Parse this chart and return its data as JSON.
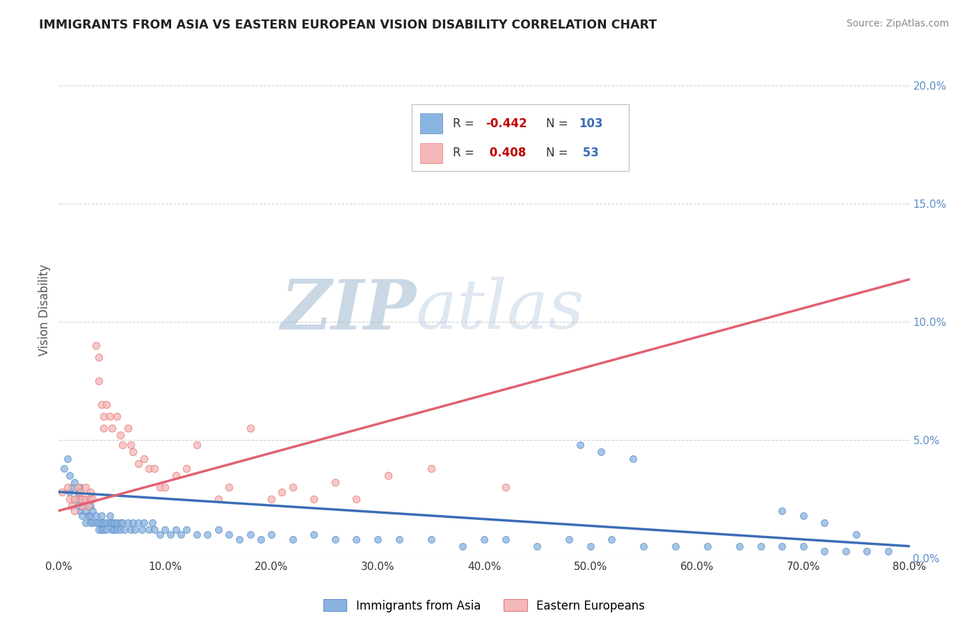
{
  "title": "IMMIGRANTS FROM ASIA VS EASTERN EUROPEAN VISION DISABILITY CORRELATION CHART",
  "source": "Source: ZipAtlas.com",
  "ylabel": "Vision Disability",
  "xlim": [
    0.0,
    0.8
  ],
  "ylim": [
    0.0,
    0.21
  ],
  "xticks": [
    0.0,
    0.1,
    0.2,
    0.3,
    0.4,
    0.5,
    0.6,
    0.7,
    0.8
  ],
  "yticks": [
    0.0,
    0.05,
    0.1,
    0.15,
    0.2
  ],
  "xtick_labels": [
    "0.0%",
    "10.0%",
    "20.0%",
    "30.0%",
    "40.0%",
    "50.0%",
    "60.0%",
    "70.0%",
    "80.0%"
  ],
  "ytick_labels": [
    "0.0%",
    "5.0%",
    "10.0%",
    "15.0%",
    "20.0%"
  ],
  "blue_color": "#8ab4e0",
  "pink_color": "#f4b8b8",
  "blue_edge_color": "#5b8ec9",
  "pink_edge_color": "#e87878",
  "blue_line_color": "#3b6db5",
  "pink_line_color": "#e06070",
  "legend_R_blue": "-0.442",
  "legend_N_blue": "103",
  "legend_R_pink": "0.408",
  "legend_N_pink": "53",
  "legend_label_blue": "Immigrants from Asia",
  "legend_label_pink": "Eastern Europeans",
  "blue_scatter_x": [
    0.005,
    0.008,
    0.01,
    0.01,
    0.012,
    0.015,
    0.015,
    0.018,
    0.018,
    0.02,
    0.02,
    0.02,
    0.022,
    0.022,
    0.025,
    0.025,
    0.025,
    0.028,
    0.028,
    0.03,
    0.03,
    0.03,
    0.032,
    0.032,
    0.035,
    0.035,
    0.038,
    0.038,
    0.04,
    0.04,
    0.04,
    0.042,
    0.042,
    0.045,
    0.045,
    0.048,
    0.048,
    0.05,
    0.05,
    0.052,
    0.052,
    0.055,
    0.055,
    0.058,
    0.058,
    0.06,
    0.062,
    0.065,
    0.068,
    0.07,
    0.072,
    0.075,
    0.078,
    0.08,
    0.085,
    0.088,
    0.09,
    0.095,
    0.1,
    0.105,
    0.11,
    0.115,
    0.12,
    0.13,
    0.14,
    0.15,
    0.16,
    0.17,
    0.18,
    0.19,
    0.2,
    0.22,
    0.24,
    0.26,
    0.28,
    0.3,
    0.32,
    0.35,
    0.38,
    0.4,
    0.42,
    0.45,
    0.48,
    0.5,
    0.52,
    0.55,
    0.58,
    0.61,
    0.64,
    0.66,
    0.68,
    0.7,
    0.72,
    0.74,
    0.76,
    0.78,
    0.49,
    0.51,
    0.54,
    0.68,
    0.7,
    0.72,
    0.75
  ],
  "blue_scatter_y": [
    0.038,
    0.042,
    0.028,
    0.035,
    0.03,
    0.025,
    0.032,
    0.022,
    0.028,
    0.02,
    0.025,
    0.03,
    0.018,
    0.022,
    0.02,
    0.025,
    0.015,
    0.018,
    0.022,
    0.015,
    0.018,
    0.022,
    0.015,
    0.02,
    0.015,
    0.018,
    0.015,
    0.012,
    0.015,
    0.018,
    0.012,
    0.015,
    0.012,
    0.015,
    0.012,
    0.015,
    0.018,
    0.012,
    0.015,
    0.012,
    0.015,
    0.012,
    0.015,
    0.012,
    0.015,
    0.015,
    0.012,
    0.015,
    0.012,
    0.015,
    0.012,
    0.015,
    0.012,
    0.015,
    0.012,
    0.015,
    0.012,
    0.01,
    0.012,
    0.01,
    0.012,
    0.01,
    0.012,
    0.01,
    0.01,
    0.012,
    0.01,
    0.008,
    0.01,
    0.008,
    0.01,
    0.008,
    0.01,
    0.008,
    0.008,
    0.008,
    0.008,
    0.008,
    0.005,
    0.008,
    0.008,
    0.005,
    0.008,
    0.005,
    0.008,
    0.005,
    0.005,
    0.005,
    0.005,
    0.005,
    0.005,
    0.005,
    0.003,
    0.003,
    0.003,
    0.003,
    0.048,
    0.045,
    0.042,
    0.02,
    0.018,
    0.015,
    0.01
  ],
  "pink_scatter_x": [
    0.003,
    0.008,
    0.01,
    0.012,
    0.015,
    0.015,
    0.018,
    0.02,
    0.02,
    0.022,
    0.022,
    0.025,
    0.025,
    0.028,
    0.03,
    0.03,
    0.032,
    0.035,
    0.038,
    0.038,
    0.04,
    0.042,
    0.042,
    0.045,
    0.048,
    0.05,
    0.055,
    0.058,
    0.06,
    0.065,
    0.068,
    0.07,
    0.075,
    0.08,
    0.085,
    0.09,
    0.095,
    0.1,
    0.11,
    0.12,
    0.13,
    0.15,
    0.16,
    0.18,
    0.2,
    0.21,
    0.22,
    0.24,
    0.26,
    0.28,
    0.31,
    0.35,
    0.42
  ],
  "pink_scatter_y": [
    0.028,
    0.03,
    0.025,
    0.022,
    0.025,
    0.02,
    0.03,
    0.025,
    0.028,
    0.025,
    0.022,
    0.025,
    0.03,
    0.022,
    0.025,
    0.028,
    0.025,
    0.09,
    0.085,
    0.075,
    0.065,
    0.06,
    0.055,
    0.065,
    0.06,
    0.055,
    0.06,
    0.052,
    0.048,
    0.055,
    0.048,
    0.045,
    0.04,
    0.042,
    0.038,
    0.038,
    0.03,
    0.03,
    0.035,
    0.038,
    0.048,
    0.025,
    0.03,
    0.055,
    0.025,
    0.028,
    0.03,
    0.025,
    0.032,
    0.025,
    0.035,
    0.038,
    0.03
  ],
  "pink_line_start_x": 0.0,
  "pink_line_start_y": 0.02,
  "pink_line_end_x": 0.8,
  "pink_line_end_y": 0.118,
  "blue_line_start_x": 0.0,
  "blue_line_start_y": 0.028,
  "blue_line_end_x": 0.8,
  "blue_line_end_y": 0.005,
  "watermark_text": "ZIPatlas",
  "watermark_color": "#ccdcec",
  "background_color": "#ffffff",
  "grid_color": "#cccccc"
}
